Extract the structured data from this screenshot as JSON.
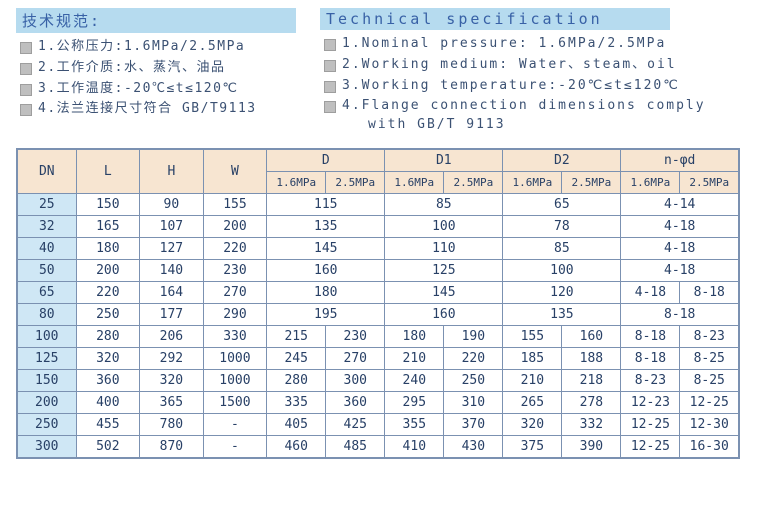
{
  "headers": {
    "zh": "技术规范:",
    "en": "Technical specification"
  },
  "specs_zh": [
    "1.公称压力:1.6MPa/2.5MPa",
    "2.工作介质:水、蒸汽、油品",
    "3.工作温度:-20℃≤t≤120℃",
    "4.法兰连接尺寸符合 GB/T9113"
  ],
  "specs_en": [
    "1.Nominal pressure: 1.6MPa/2.5MPa",
    "2.Working medium: Water、steam、oil",
    "3.Working temperature:-20℃≤t≤120℃",
    "4.Flange connection dimensions comply"
  ],
  "specs_en_cont": "with GB/T 9113",
  "table": {
    "col_headers": {
      "dn": "DN",
      "l": "L",
      "h": "H",
      "w": "W",
      "d": "D",
      "d1": "D1",
      "d2": "D2",
      "nphi": "n-φd",
      "p16": "1.6MPa",
      "p25": "2.5MPa"
    },
    "rows": [
      {
        "dn": "25",
        "l": "150",
        "h": "90",
        "w": "155",
        "d": [
          null,
          "115"
        ],
        "d1": [
          null,
          "85"
        ],
        "d2": [
          null,
          "65"
        ],
        "n": [
          null,
          "4-14"
        ]
      },
      {
        "dn": "32",
        "l": "165",
        "h": "107",
        "w": "200",
        "d": [
          null,
          "135"
        ],
        "d1": [
          null,
          "100"
        ],
        "d2": [
          null,
          "78"
        ],
        "n": [
          null,
          "4-18"
        ]
      },
      {
        "dn": "40",
        "l": "180",
        "h": "127",
        "w": "220",
        "d": [
          null,
          "145"
        ],
        "d1": [
          null,
          "110"
        ],
        "d2": [
          null,
          "85"
        ],
        "n": [
          null,
          "4-18"
        ]
      },
      {
        "dn": "50",
        "l": "200",
        "h": "140",
        "w": "230",
        "d": [
          null,
          "160"
        ],
        "d1": [
          null,
          "125"
        ],
        "d2": [
          null,
          "100"
        ],
        "n": [
          null,
          "4-18"
        ]
      },
      {
        "dn": "65",
        "l": "220",
        "h": "164",
        "w": "270",
        "d": [
          null,
          "180"
        ],
        "d1": [
          null,
          "145"
        ],
        "d2": [
          null,
          "120"
        ],
        "n": [
          "4-18",
          "8-18"
        ]
      },
      {
        "dn": "80",
        "l": "250",
        "h": "177",
        "w": "290",
        "d": [
          null,
          "195"
        ],
        "d1": [
          null,
          "160"
        ],
        "d2": [
          null,
          "135"
        ],
        "n": [
          null,
          "8-18"
        ]
      },
      {
        "dn": "100",
        "l": "280",
        "h": "206",
        "w": "330",
        "d": [
          "215",
          "230"
        ],
        "d1": [
          "180",
          "190"
        ],
        "d2": [
          "155",
          "160"
        ],
        "n": [
          "8-18",
          "8-23"
        ]
      },
      {
        "dn": "125",
        "l": "320",
        "h": "292",
        "w": "1000",
        "d": [
          "245",
          "270"
        ],
        "d1": [
          "210",
          "220"
        ],
        "d2": [
          "185",
          "188"
        ],
        "n": [
          "8-18",
          "8-25"
        ]
      },
      {
        "dn": "150",
        "l": "360",
        "h": "320",
        "w": "1000",
        "d": [
          "280",
          "300"
        ],
        "d1": [
          "240",
          "250"
        ],
        "d2": [
          "210",
          "218"
        ],
        "n": [
          "8-23",
          "8-25"
        ]
      },
      {
        "dn": "200",
        "l": "400",
        "h": "365",
        "w": "1500",
        "d": [
          "335",
          "360"
        ],
        "d1": [
          "295",
          "310"
        ],
        "d2": [
          "265",
          "278"
        ],
        "n": [
          "12-23",
          "12-25"
        ]
      },
      {
        "dn": "250",
        "l": "455",
        "h": "780",
        "w": "-",
        "d": [
          "405",
          "425"
        ],
        "d1": [
          "355",
          "370"
        ],
        "d2": [
          "320",
          "332"
        ],
        "n": [
          "12-25",
          "12-30"
        ]
      },
      {
        "dn": "300",
        "l": "502",
        "h": "870",
        "w": "-",
        "d": [
          "460",
          "485"
        ],
        "d1": [
          "410",
          "430"
        ],
        "d2": [
          "375",
          "390"
        ],
        "n": [
          "12-25",
          "16-30"
        ]
      }
    ]
  },
  "colors": {
    "header_bg": "#b6dbef",
    "header_fg": "#3861a6",
    "thead_bg": "#f7e5d1",
    "dn_bg": "#cfe7f5",
    "border": "#7b91b1",
    "text": "#3b5173",
    "bullet": "#bfbfbf"
  }
}
